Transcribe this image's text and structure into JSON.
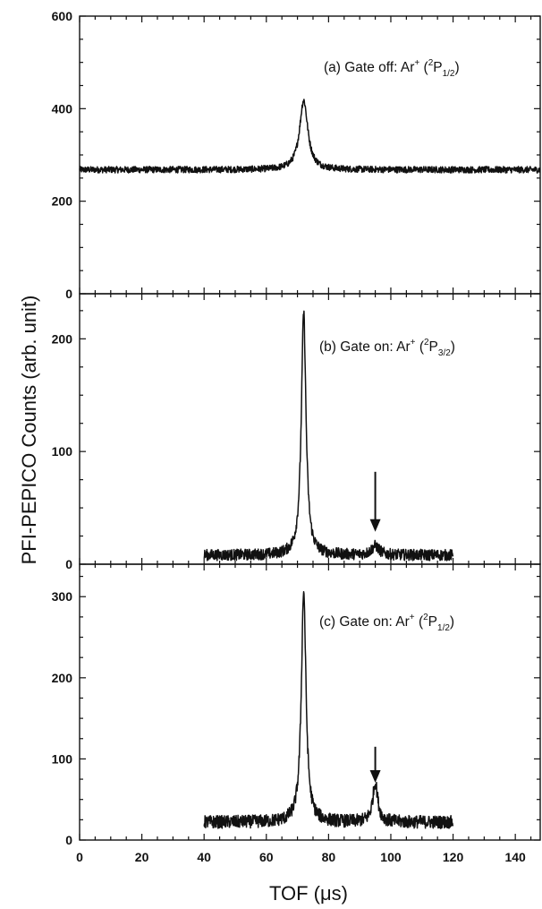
{
  "chart_data": {
    "type": "line",
    "xlabel": "TOF (μs)",
    "ylabel": "PFI-PEPICO Counts (arb. unit)",
    "xlim": [
      0,
      148
    ],
    "x_ticks": [
      0,
      20,
      40,
      60,
      80,
      100,
      120,
      140
    ],
    "panels": [
      {
        "label_prefix": "(a) Gate off: Ar",
        "label_sup": "+",
        "label_state_pre": " (",
        "label_state_sup": "2",
        "label_state_core": "P",
        "label_state_sub": "1/2",
        "label_state_post": ")",
        "ylim": [
          0,
          600
        ],
        "y_ticks": [
          0,
          200,
          400,
          600
        ],
        "x_range": [
          0,
          148
        ],
        "baseline": 268,
        "noise": 7,
        "peaks": [
          {
            "center": 72,
            "height": 150,
            "width": 1.6
          }
        ],
        "arrow_at": null
      },
      {
        "label_prefix": "(b) Gate on: Ar",
        "label_sup": "+",
        "label_state_pre": " (",
        "label_state_sup": "2",
        "label_state_core": "P",
        "label_state_sub": "3/2",
        "label_state_post": ")",
        "ylim": [
          0,
          240
        ],
        "y_ticks": [
          0,
          100,
          200
        ],
        "x_range": [
          40,
          120
        ],
        "baseline": 8,
        "noise": 5,
        "peaks": [
          {
            "center": 72,
            "height": 215,
            "width": 0.9
          },
          {
            "center": 95,
            "height": 8,
            "width": 1.5
          }
        ],
        "arrow_at": {
          "x": 95,
          "y_start": 82,
          "y_end": 32
        }
      },
      {
        "label_prefix": "(c) Gate on: Ar",
        "label_sup": "+",
        "label_state_pre": " (",
        "label_state_sup": "2",
        "label_state_core": "P",
        "label_state_sub": "1/2",
        "label_state_post": ")",
        "ylim": [
          0,
          340
        ],
        "y_ticks": [
          0,
          100,
          200,
          300
        ],
        "x_range": [
          40,
          120
        ],
        "baseline": 22,
        "noise": 8,
        "peaks": [
          {
            "center": 72,
            "height": 285,
            "width": 0.9
          },
          {
            "center": 95,
            "height": 48,
            "width": 1.0
          }
        ],
        "arrow_at": {
          "x": 95,
          "y_start": 115,
          "y_end": 75
        }
      }
    ]
  }
}
